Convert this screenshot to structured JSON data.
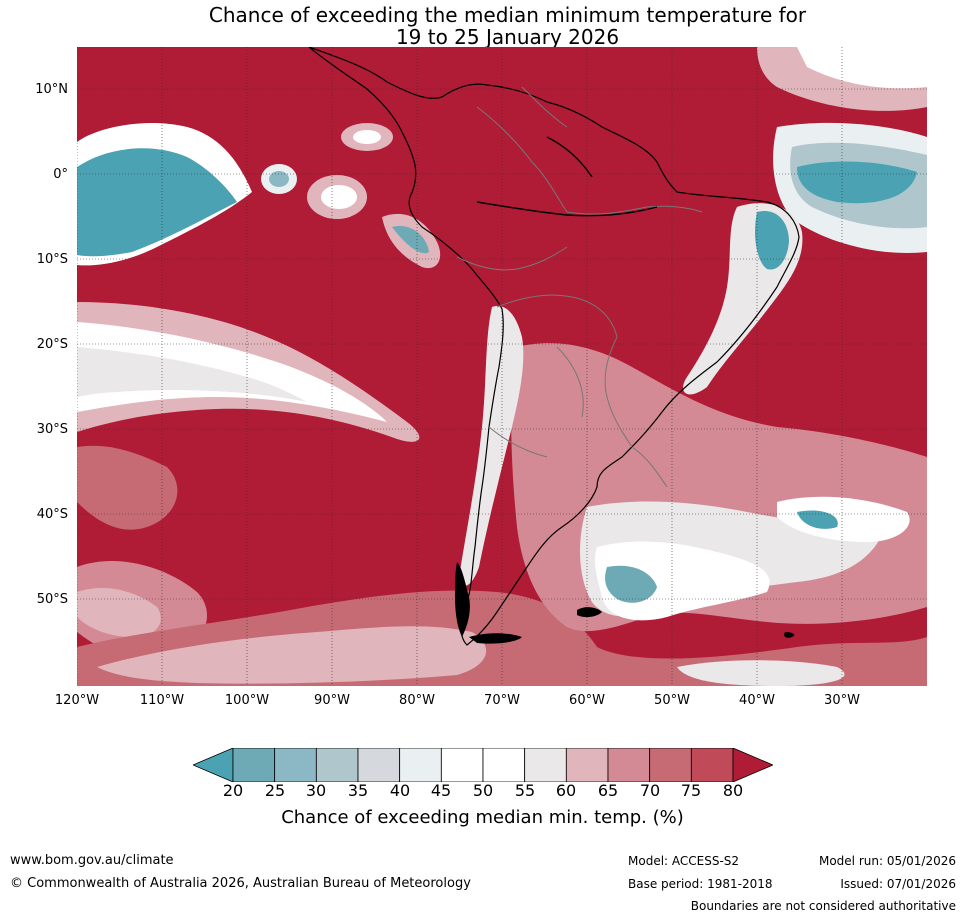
{
  "title": {
    "line1": "Chance of exceeding the median minimum temperature for",
    "line2": "19 to 25 January 2026"
  },
  "map": {
    "lat_labels": [
      "10°N",
      "0°",
      "10°S",
      "20°S",
      "30°S",
      "40°S",
      "50°S"
    ],
    "lon_labels": [
      "120°W",
      "110°W",
      "100°W",
      "90°W",
      "80°W",
      "70°W",
      "60°W",
      "50°W",
      "40°W",
      "30°W"
    ]
  },
  "colorbar": {
    "ticks": [
      "20",
      "25",
      "30",
      "35",
      "40",
      "45",
      "50",
      "55",
      "60",
      "65",
      "70",
      "75",
      "80"
    ],
    "colors": [
      "#4ba2b2",
      "#6eaab6",
      "#8bb8c4",
      "#aec6cc",
      "#d5d8dc",
      "#eaeff1",
      "#ffffff",
      "#ffffff",
      "#ebe8e9",
      "#e0b6bc",
      "#d48a94",
      "#c66a74",
      "#c04a58",
      "#b01b36"
    ],
    "label": "Chance of exceeding median min. temp. (%)"
  },
  "footer": {
    "url": "www.bom.gov.au/climate",
    "copyright": "© Commonwealth of Australia 2026, Australian Bureau of Meteorology",
    "model": "Model: ACCESS-S2",
    "base_period": "Base period: 1981-2018",
    "model_run": "Model run: 05/01/2026",
    "issued": "Issued: 07/01/2026",
    "disclaimer": "Boundaries are not considered authoritative"
  }
}
